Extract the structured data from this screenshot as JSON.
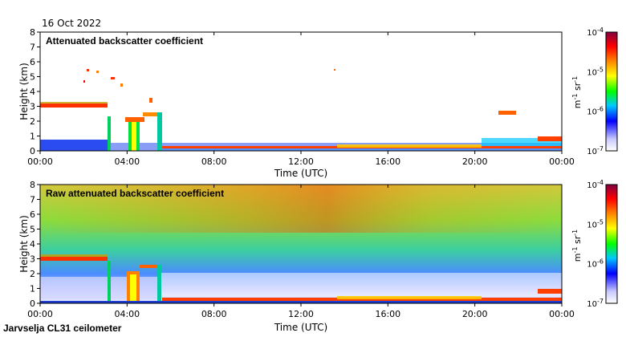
{
  "page": {
    "date": "16 Oct 2022",
    "footer": "Jarvselja CL31 ceilometer"
  },
  "chart_data": [
    {
      "type": "heatmap",
      "title": "Attenuated backscatter coefficient",
      "xlabel": "Time (UTC)",
      "ylabel": "Height (km)",
      "x_ticks": [
        "00:00",
        "04:00",
        "08:00",
        "12:00",
        "16:00",
        "20:00",
        "00:00"
      ],
      "y_ticks": [
        "0",
        "1",
        "2",
        "3",
        "4",
        "5",
        "6",
        "7",
        "8"
      ],
      "xlim_hours": [
        0,
        24
      ],
      "ylim_km": [
        0,
        8
      ],
      "colorbar": {
        "ticks": [
          {
            "base": "10",
            "exp": "-7"
          },
          {
            "base": "10",
            "exp": "-6"
          },
          {
            "base": "10",
            "exp": "-5"
          },
          {
            "base": "10",
            "exp": "-4"
          }
        ],
        "unit_m": "m",
        "unit_m_exp": "-1",
        "unit_sr": "sr",
        "unit_sr_exp": "-1",
        "log_range": [
          -7,
          -4
        ]
      },
      "features": [
        {
          "name": "cloud layer",
          "start_h": 0.0,
          "end_h": 3.0,
          "height_km": 3.0
        },
        {
          "name": "low cloud",
          "start_h": 3.9,
          "end_h": 4.7,
          "height_km": 2.2
        },
        {
          "name": "surface layer",
          "start_h": 5.6,
          "end_h": 24.0,
          "height_km": 0.3
        },
        {
          "name": "elevated feature",
          "start_h": 21.3,
          "end_h": 22.1,
          "height_km": 2.5
        }
      ]
    },
    {
      "type": "heatmap",
      "title": "Raw attenuated backscatter coefficient",
      "xlabel": "Time (UTC)",
      "ylabel": "Height (km)",
      "x_ticks": [
        "00:00",
        "04:00",
        "08:00",
        "12:00",
        "16:00",
        "20:00",
        "00:00"
      ],
      "y_ticks": [
        "0",
        "1",
        "2",
        "3",
        "4",
        "5",
        "6",
        "7",
        "8"
      ],
      "xlim_hours": [
        0,
        24
      ],
      "ylim_km": [
        0,
        8
      ],
      "colorbar": {
        "ticks": [
          {
            "base": "10",
            "exp": "-7"
          },
          {
            "base": "10",
            "exp": "-6"
          },
          {
            "base": "10",
            "exp": "-5"
          },
          {
            "base": "10",
            "exp": "-4"
          }
        ],
        "unit_m": "m",
        "unit_m_exp": "-1",
        "unit_sr": "sr",
        "unit_sr_exp": "-1",
        "log_range": [
          -7,
          -4
        ]
      },
      "features": [
        {
          "name": "cloud layer",
          "start_h": 0.0,
          "end_h": 3.0,
          "height_km": 3.0
        },
        {
          "name": "low cloud",
          "start_h": 3.9,
          "end_h": 4.7,
          "height_km": 2.2
        },
        {
          "name": "surface layer",
          "start_h": 5.6,
          "end_h": 24.0,
          "height_km": 0.3
        }
      ]
    }
  ]
}
